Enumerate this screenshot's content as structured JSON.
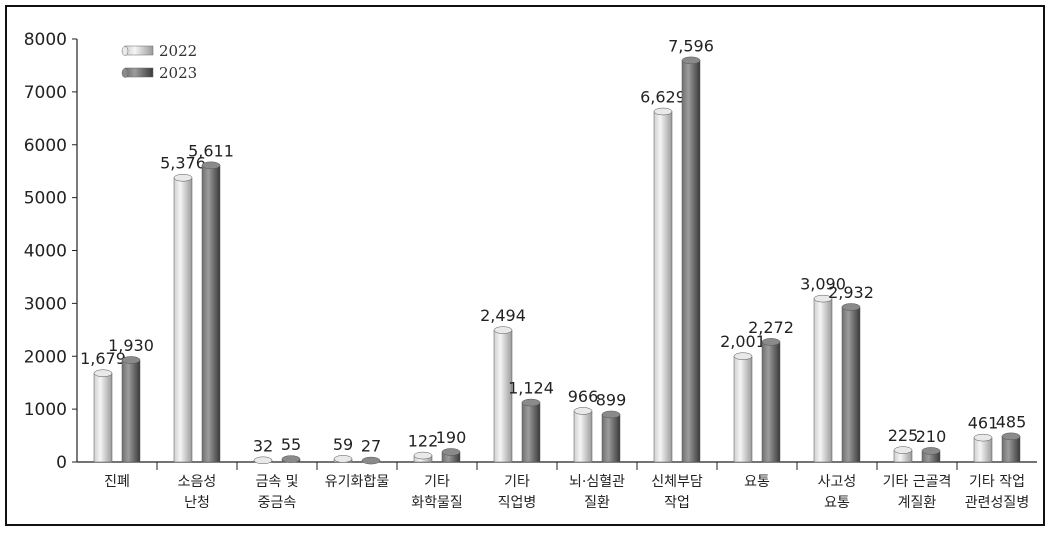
{
  "chart_data": {
    "type": "bar",
    "categories": [
      "진폐",
      "소음성 난청",
      "금속 및 중금속",
      "유기화합물",
      "기타 화학물질",
      "기타 직업병",
      "뇌·심혈관 질환",
      "신체부담 작업",
      "요통",
      "사고성 요통",
      "기타 근골격 계질환",
      "기타 작업 관련성질병"
    ],
    "category_lines": [
      [
        "진폐"
      ],
      [
        "소음성",
        "난청"
      ],
      [
        "금속 및",
        "중금속"
      ],
      [
        "유기화합물"
      ],
      [
        "기타",
        "화학물질"
      ],
      [
        "기타",
        "직업병"
      ],
      [
        "뇌·심혈관",
        "질환"
      ],
      [
        "신체부담",
        "작업"
      ],
      [
        "요통"
      ],
      [
        "사고성",
        "요통"
      ],
      [
        "기타 근골격",
        "계질환"
      ],
      [
        "기타 작업",
        "관련성질병"
      ]
    ],
    "series": [
      {
        "name": "2022",
        "values": [
          1679,
          5376,
          32,
          59,
          122,
          2494,
          966,
          6629,
          2001,
          3090,
          225,
          461
        ],
        "labels": [
          "1,679",
          "5,376",
          "32",
          "59",
          "122",
          "2,494",
          "966",
          "6,629",
          "2,001",
          "3,090",
          "225",
          "461"
        ],
        "color": "#d2d2d2"
      },
      {
        "name": "2023",
        "values": [
          1930,
          5611,
          55,
          27,
          190,
          1124,
          899,
          7596,
          2272,
          2932,
          210,
          485
        ],
        "labels": [
          "1,930",
          "5,611",
          "55",
          "27",
          "190",
          "1,124",
          "899",
          "7,596",
          "2,272",
          "2,932",
          "210",
          "485"
        ],
        "color": "#6e6e6e"
      }
    ],
    "ylim": [
      0,
      8000
    ],
    "yticks": [
      0,
      1000,
      2000,
      3000,
      4000,
      5000,
      6000,
      7000,
      8000
    ],
    "ytick_labels": [
      "0",
      "1000",
      "2000",
      "3000",
      "4000",
      "5000",
      "6000",
      "7000",
      "8000"
    ],
    "legend_position": "top-left",
    "grid": false
  }
}
